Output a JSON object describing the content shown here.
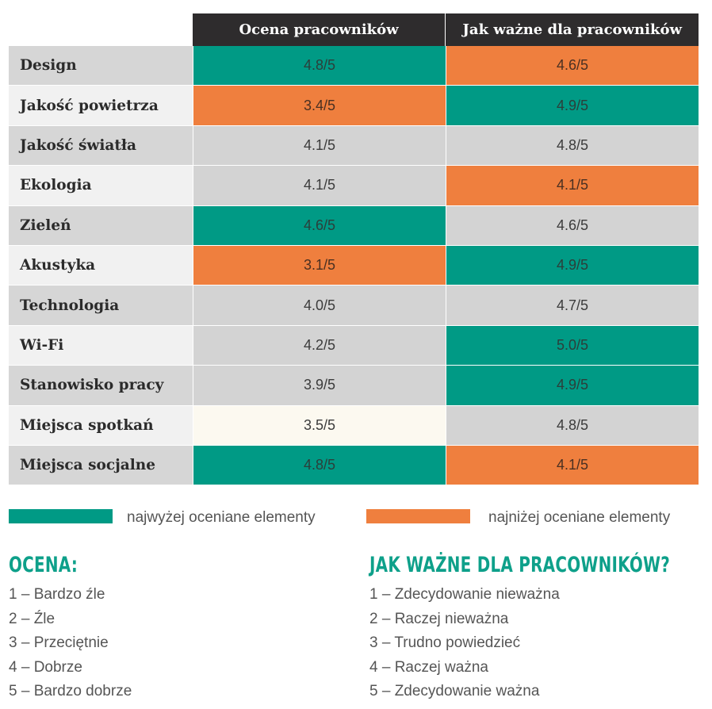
{
  "chart_data": {
    "type": "table",
    "columns": [
      "Ocena pracowników",
      "Jak ważne dla pracowników"
    ],
    "rows": [
      {
        "label": "Design",
        "values": [
          "4.8/5",
          "4.6/5"
        ],
        "highlight": [
          "high",
          "low"
        ]
      },
      {
        "label": "Jakość powietrza",
        "values": [
          "3.4/5",
          "4.9/5"
        ],
        "highlight": [
          "low",
          "high"
        ]
      },
      {
        "label": "Jakość światła",
        "values": [
          "4.1/5",
          "4.8/5"
        ],
        "highlight": [
          "none",
          "none"
        ]
      },
      {
        "label": "Ekologia",
        "values": [
          "4.1/5",
          "4.1/5"
        ],
        "highlight": [
          "none",
          "low"
        ]
      },
      {
        "label": "Zieleń",
        "values": [
          "4.6/5",
          "4.6/5"
        ],
        "highlight": [
          "high",
          "none"
        ]
      },
      {
        "label": "Akustyka",
        "values": [
          "3.1/5",
          "4.9/5"
        ],
        "highlight": [
          "low",
          "high"
        ]
      },
      {
        "label": "Technologia",
        "values": [
          "4.0/5",
          "4.7/5"
        ],
        "highlight": [
          "none",
          "none"
        ]
      },
      {
        "label": "Wi-Fi",
        "values": [
          "4.2/5",
          "5.0/5"
        ],
        "highlight": [
          "none",
          "high"
        ]
      },
      {
        "label": "Stanowisko pracy",
        "values": [
          "3.9/5",
          "4.9/5"
        ],
        "highlight": [
          "none",
          "high"
        ]
      },
      {
        "label": "Miejsca spotkań",
        "values": [
          "3.5/5",
          "4.8/5"
        ],
        "highlight": [
          "cream",
          "none"
        ]
      },
      {
        "label": "Miejsca socjalne",
        "values": [
          "4.8/5",
          "4.1/5"
        ],
        "highlight": [
          "high",
          "low"
        ]
      }
    ],
    "colors": {
      "high": "#009a85",
      "low": "#ef7f3e",
      "neutral": "#d3d3d3",
      "header": "#2e2c2d"
    }
  },
  "legend": {
    "high_label": "najwyżej oceniane elementy",
    "low_label": "najniżej oceniane elementy"
  },
  "scales": {
    "ocena": {
      "title": "OCENA:",
      "items": [
        "1 – Bardzo źle",
        "2 – Źle",
        "3 – Przeciętnie",
        "4 – Dobrze",
        "5 – Bardzo dobrze"
      ]
    },
    "waznosc": {
      "title": "JAK WAŻNE DLA PRACOWNIKÓW?",
      "items": [
        "1 – Zdecydowanie nieważna",
        "2 – Raczej nieważna",
        "3 – Trudno powiedzieć",
        "4 – Raczej ważna",
        "5 – Zdecydowanie ważna"
      ]
    }
  }
}
